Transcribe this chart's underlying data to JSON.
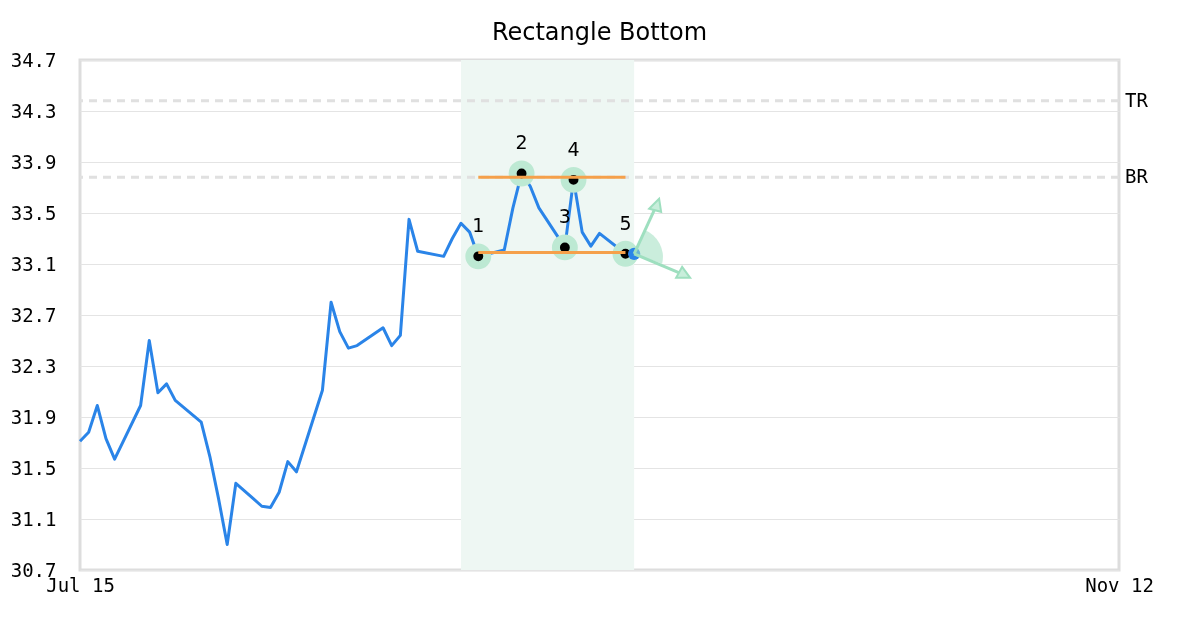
{
  "chart_data": {
    "type": "line",
    "title": "Rectangle Bottom",
    "x": [
      "--07-15",
      "--07-16",
      "--07-17",
      "--07-18",
      "--07-19",
      "--07-22",
      "--07-23",
      "--07-24",
      "--07-25",
      "--07-26",
      "--07-29",
      "--07-30",
      "--07-31",
      "--08-01",
      "--08-02",
      "--08-05",
      "--08-06",
      "--08-07",
      "--08-08",
      "--08-09",
      "--08-12",
      "--08-13",
      "--08-14",
      "--08-15",
      "--08-16",
      "--08-19",
      "--08-20",
      "--08-21",
      "--08-22",
      "--08-23",
      "--08-26",
      "--08-27",
      "--08-28",
      "--08-29",
      "--08-30",
      "--09-02",
      "--09-03",
      "--09-04",
      "--09-05",
      "--09-06",
      "--09-09",
      "--09-10",
      "--09-11",
      "--09-12",
      "--09-13",
      "--09-16"
    ],
    "xlim": [
      "--07-15",
      "--11-12"
    ],
    "xticks": [
      {
        "value": "--07-15",
        "label": "Jul 15"
      },
      {
        "value": "--11-12",
        "label": "Nov 12"
      }
    ],
    "ylim": [
      30.7,
      34.7
    ],
    "yticks": [
      30.7,
      31.1,
      31.5,
      31.9,
      32.3,
      32.7,
      33.1,
      33.5,
      33.9,
      34.3,
      34.7
    ],
    "grid": "y",
    "annotations": [
      {
        "text": "1",
        "x": "--08-30",
        "y": 33.16
      },
      {
        "text": "2",
        "x": "--09-04",
        "y": 33.81
      },
      {
        "text": "3",
        "x": "--09-09",
        "y": 33.23
      },
      {
        "text": "4",
        "x": "--09-10",
        "y": 33.76
      },
      {
        "text": "5",
        "x": "--09-16",
        "y": 33.18
      }
    ],
    "series": [
      {
        "color": "#2a84e8",
        "values": [
          31.71,
          31.78,
          31.99,
          31.73,
          31.57,
          31.99,
          32.5,
          32.09,
          32.16,
          32.03,
          31.86,
          31.59,
          31.26,
          30.9,
          31.38,
          31.2,
          31.19,
          31.31,
          31.55,
          31.47,
          32.11,
          32.8,
          32.57,
          32.44,
          32.46,
          32.6,
          32.46,
          32.54,
          33.45,
          33.2,
          33.16,
          33.3,
          33.42,
          33.35,
          33.16,
          33.21,
          33.54,
          33.81,
          33.71,
          33.54,
          33.23,
          33.76,
          33.35,
          33.24,
          33.34,
          33.18
        ]
      },
      {
        "type": "line",
        "color": "#f5a04a",
        "x": [
          "--08-30",
          "--09-16"
        ],
        "values": [
          33.78,
          33.78
        ]
      },
      {
        "type": "line",
        "color": "#f5a04a",
        "x": [
          "--08-30",
          "--09-16"
        ],
        "values": [
          33.19,
          33.19
        ]
      },
      {
        "type": "scatter",
        "color": "#000000",
        "x": [
          "--08-30",
          "--09-04",
          "--09-09",
          "--09-10",
          "--09-16"
        ],
        "values": [
          33.16,
          33.81,
          33.23,
          33.76,
          33.18
        ],
        "marker": "circle"
      },
      {
        "type": "scatter",
        "color": "#2a84e8",
        "x": [
          "--09-17"
        ],
        "values": [
          33.18
        ]
      }
    ],
    "ref_lines": [
      {
        "axis": "y",
        "value": 34.38,
        "label": "TR",
        "color": "#e0e0e0",
        "line_style": "dashed"
      },
      {
        "axis": "y",
        "value": 33.78,
        "label": "BR",
        "color": "#e0e0e0",
        "line_style": "dashed"
      }
    ],
    "bands": [
      {
        "axis": "x",
        "from": "--08-28",
        "to": "--09-17",
        "color": "#eef7f3"
      }
    ]
  }
}
